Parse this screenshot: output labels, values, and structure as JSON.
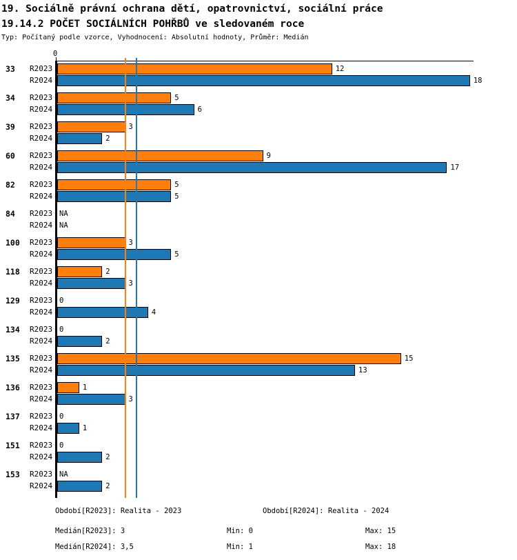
{
  "header": {
    "title_line1": "19. Sociálně právní ochrana dětí, opatrovnictví, sociální práce",
    "title_line2": "19.14.2 POČET SOCIÁLNÍCH POHŘBŮ ve sledovaném roce",
    "subtitle": "Typ: Počítaný podle vzorce, Vyhodnocení: Absolutní hodnoty, Průměr: Medián"
  },
  "chart_data": {
    "type": "bar",
    "orientation": "horizontal",
    "title": "19.14.2 POČET SOCIÁLNÍCH POHŘBŮ ve sledovaném roce",
    "categories": [
      "33",
      "34",
      "39",
      "60",
      "82",
      "84",
      "100",
      "118",
      "129",
      "134",
      "135",
      "136",
      "137",
      "151",
      "153"
    ],
    "series": [
      {
        "name": "R2023",
        "color": "#ff7f0e",
        "values": [
          12,
          5,
          3,
          9,
          5,
          null,
          3,
          2,
          0,
          0,
          15,
          1,
          0,
          0,
          null
        ]
      },
      {
        "name": "R2024",
        "color": "#1f77b4",
        "values": [
          18,
          6,
          2,
          17,
          5,
          null,
          5,
          3,
          4,
          2,
          13,
          3,
          1,
          2,
          2
        ]
      }
    ],
    "na_label": "NA",
    "zero_label": "0",
    "axis": {
      "x_min": 0,
      "x_max": 18.2,
      "zero_tick_label": "0",
      "grid": false
    },
    "reference_lines": [
      {
        "name": "median-r2023",
        "label": "Medián[R2023]",
        "value": 3,
        "color": "#ff7f0e"
      },
      {
        "name": "median-r2024",
        "label": "Medián[R2024]",
        "value": 3.5,
        "color": "#1f77b4"
      }
    ],
    "legend_position": "none"
  },
  "footer": {
    "period_r2023": "Období[R2023]: Realita - 2023",
    "period_r2024": "Období[R2024]: Realita - 2024",
    "median_r2023": "Medián[R2023]: 3",
    "min_r2023": "Min: 0",
    "max_r2023": "Max: 15",
    "median_r2024": "Medián[R2024]: 3,5",
    "min_r2024": "Min: 1",
    "max_r2024": "Max: 18"
  }
}
